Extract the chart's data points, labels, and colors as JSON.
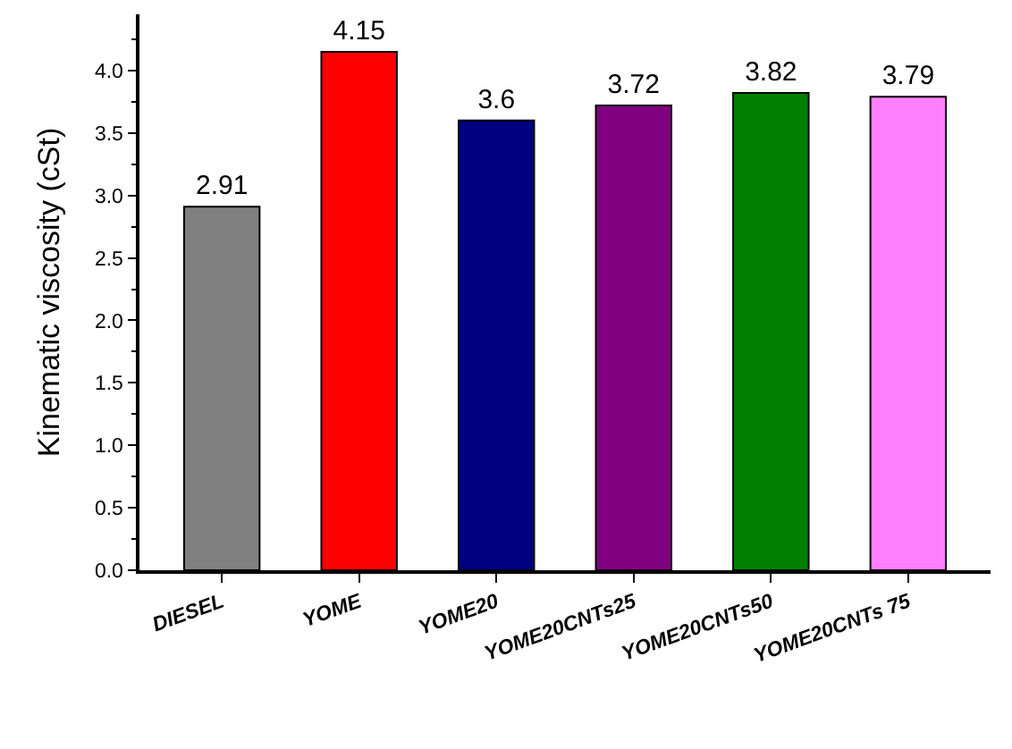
{
  "chart_data": {
    "type": "bar",
    "ylabel": "Kinematic viscosity (cSt)",
    "categories": [
      "DIESEL",
      "YOME",
      "YOME20",
      "YOME20CNTs25",
      "YOME20CNTs50",
      "YOME20CNTs 75"
    ],
    "values": [
      2.91,
      4.15,
      3.6,
      3.72,
      3.82,
      3.79
    ],
    "colors": [
      "#808080",
      "#ff0000",
      "#000080",
      "#800080",
      "#008000",
      "#ff80ff"
    ],
    "ylim": [
      0,
      4.45
    ],
    "yticks": [
      "0.0",
      "0.5",
      "1.0",
      "1.5",
      "2.0",
      "2.5",
      "3.0",
      "3.5",
      "4.0"
    ],
    "data_labels": true
  }
}
